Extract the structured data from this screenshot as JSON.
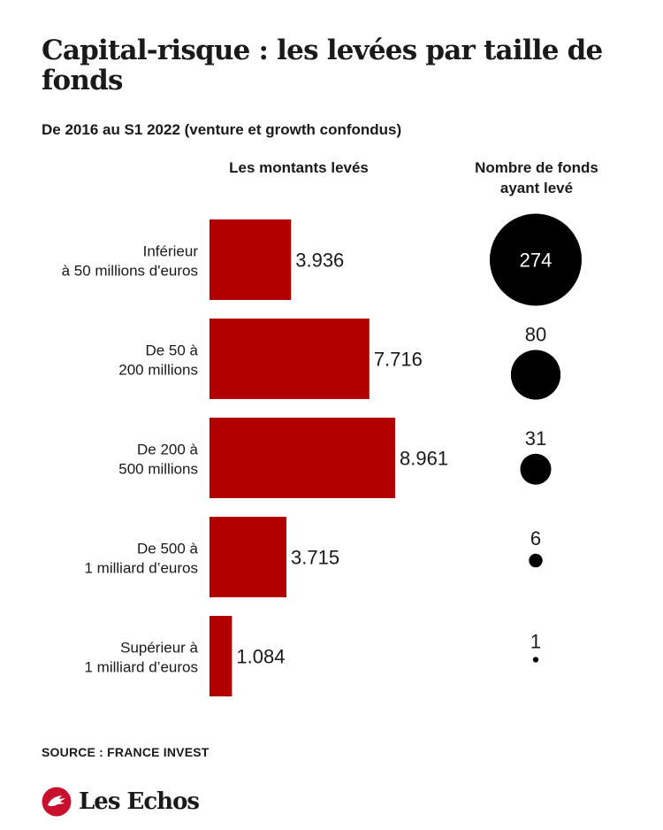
{
  "title": "Capital-risque : les levées par taille de fonds",
  "subtitle": "De 2016 au S1 2022 (venture et growth confondus)",
  "column_headers": {
    "amounts": "Les montants levés",
    "funds": "Nombre de fonds ayant levé"
  },
  "source": "SOURCE : FRANCE INVEST",
  "brand": "Les Echos",
  "colors": {
    "bar": "#b30000",
    "bubble": "#000000",
    "bubble_label_inside": "#ffffff"
  },
  "chart_data": {
    "type": "bar",
    "orientation": "horizontal",
    "categories": [
      [
        "Inférieur",
        "à 50 millions d'euros"
      ],
      [
        "De 50 à",
        "200 millions"
      ],
      [
        "De 200 à",
        "500 millions"
      ],
      [
        "De 500 à",
        "1 milliard d’euros"
      ],
      [
        "Supérieur à",
        "1 milliard d’euros"
      ]
    ],
    "series": [
      {
        "name": "Les montants levés",
        "values": [
          3936,
          7716,
          8961,
          3715,
          1084
        ],
        "labels": [
          "3.936",
          "7.716",
          "8.961",
          "3.715",
          "1.084"
        ]
      },
      {
        "name": "Nombre de fonds ayant levé",
        "values": [
          274,
          80,
          31,
          6,
          1
        ],
        "labels": [
          "274",
          "80",
          "31",
          "6",
          "1"
        ],
        "mark": "bubble"
      }
    ],
    "xlim": [
      0,
      8961
    ],
    "grid": false,
    "legend": "none"
  }
}
